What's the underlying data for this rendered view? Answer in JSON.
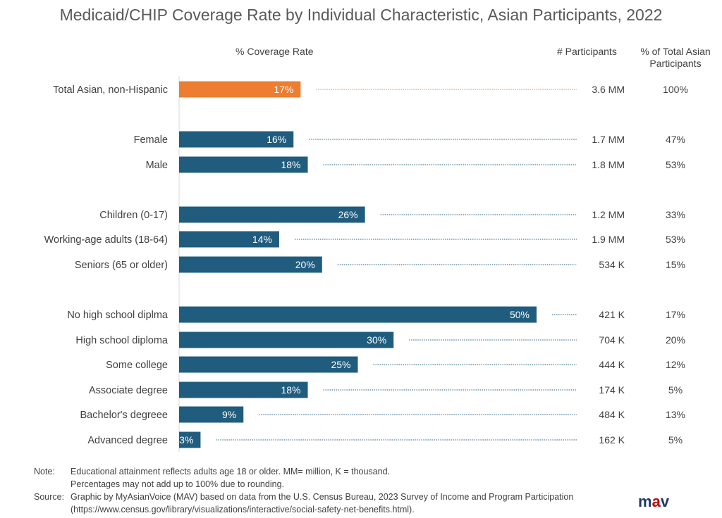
{
  "chart_data": {
    "type": "bar",
    "orientation": "horizontal",
    "title": "Medicaid/CHIP Coverage Rate by Individual Characteristic, Asian Participants, 2022",
    "xlabel": "% Coverage Rate",
    "xlim": [
      0,
      100
    ],
    "columns": {
      "rate": "% Coverage Rate",
      "participants": "# Participants",
      "share_line1": "% of  Total Asian",
      "share_line2": "Participants"
    },
    "rows": [
      {
        "category": "Total Asian, non-Hispanic",
        "value": 17,
        "label": "17%",
        "participants": "3.6 MM",
        "share": "100%",
        "highlight": true
      },
      {
        "category": "Female",
        "value": 16,
        "label": "16%",
        "participants": "1.7 MM",
        "share": "47%"
      },
      {
        "category": "Male",
        "value": 18,
        "label": "18%",
        "participants": "1.8 MM",
        "share": "53%"
      },
      {
        "category": "Children  (0-17)",
        "value": 26,
        "label": "26%",
        "participants": "1.2 MM",
        "share": "33%"
      },
      {
        "category": "Working-age adults (18-64)",
        "value": 14,
        "label": "14%",
        "participants": "1.9 MM",
        "share": "53%"
      },
      {
        "category": "Seniors (65 or older)",
        "value": 20,
        "label": "20%",
        "participants": "534 K",
        "share": "15%"
      },
      {
        "category": "No high school diplma",
        "value": 50,
        "label": "50%",
        "participants": "421 K",
        "share": "17%"
      },
      {
        "category": "High school diploma",
        "value": 30,
        "label": "30%",
        "participants": "704 K",
        "share": "20%"
      },
      {
        "category": "Some college",
        "value": 25,
        "label": "25%",
        "participants": "444 K",
        "share": "12%"
      },
      {
        "category": "Associate degree",
        "value": 18,
        "label": "18%",
        "participants": "174 K",
        "share": "5%"
      },
      {
        "category": "Bachelor's degreee",
        "value": 9,
        "label": "9%",
        "participants": "484 K",
        "share": "13%"
      },
      {
        "category": "Advanced degree",
        "value": 3,
        "label": "3%",
        "participants": "162 K",
        "share": "5%"
      }
    ],
    "colors": {
      "highlight": "#ed7d31",
      "bar": "#1f5c7e",
      "leader_highlight": "#ed7d31",
      "leader": "#1f5c7e",
      "axis": "#d9d9d9"
    }
  },
  "notes": {
    "note_label": "Note:",
    "note_line1": "Educational attainment reflects adults age 18 or older. MM= million, K = thousand.",
    "note_line2": "Percentages may not add up to 100% due to rounding.",
    "source_label": "Source:",
    "source_line1": "Graphic by MyAsianVoice (MAV) based on data from the U.S. Census Bureau, 2023 Survey of Income and Program Participation",
    "source_line2": "(https://www.census.gov/library/visualizations/interactive/social-safety-net-benefits.html)."
  },
  "logo": {
    "m": "m",
    "a": "a",
    "v": "v"
  }
}
